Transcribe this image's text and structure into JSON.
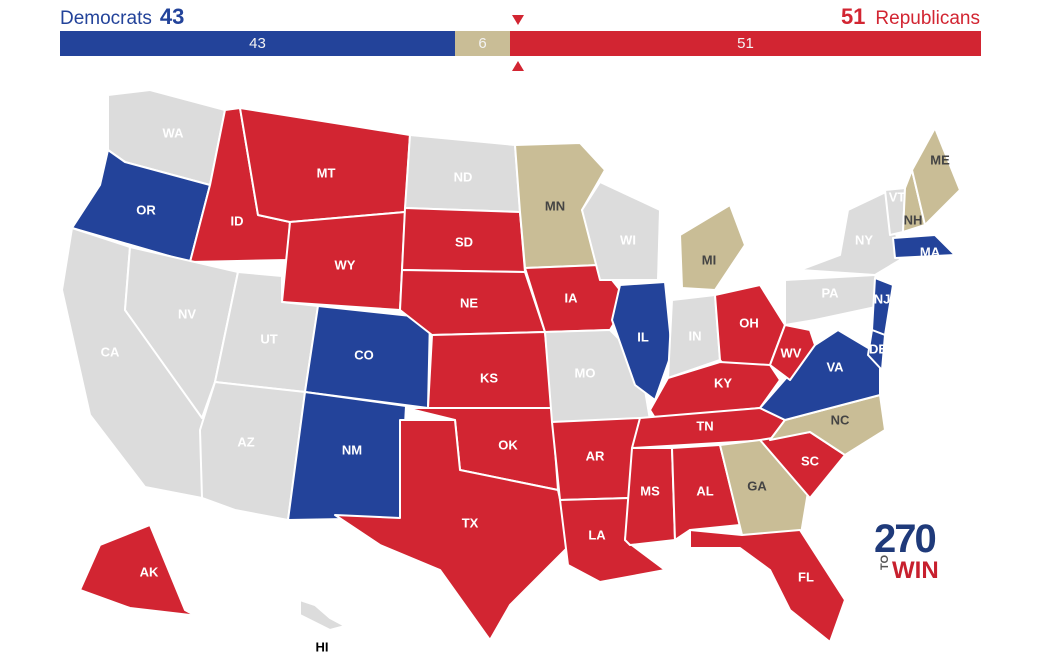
{
  "summary": {
    "dem_label": "Democrats",
    "dem_count": "43",
    "rep_label": "Republicans",
    "rep_count": "51",
    "bar": {
      "dem": "43",
      "tossup": "6",
      "rep": "51"
    }
  },
  "colors": {
    "democrat": "#23439a",
    "republican": "#d22532",
    "tossup": "#c9bd96",
    "no_race": "#dcdcdc"
  },
  "states": [
    {
      "abbr": "WA",
      "status": "none"
    },
    {
      "abbr": "OR",
      "status": "dem"
    },
    {
      "abbr": "CA",
      "status": "none"
    },
    {
      "abbr": "ID",
      "status": "rep"
    },
    {
      "abbr": "NV",
      "status": "none"
    },
    {
      "abbr": "MT",
      "status": "rep"
    },
    {
      "abbr": "WY",
      "status": "rep"
    },
    {
      "abbr": "UT",
      "status": "none"
    },
    {
      "abbr": "AZ",
      "status": "none"
    },
    {
      "abbr": "CO",
      "status": "dem"
    },
    {
      "abbr": "NM",
      "status": "dem"
    },
    {
      "abbr": "ND",
      "status": "none"
    },
    {
      "abbr": "SD",
      "status": "rep"
    },
    {
      "abbr": "NE",
      "status": "rep"
    },
    {
      "abbr": "KS",
      "status": "rep"
    },
    {
      "abbr": "OK",
      "status": "rep"
    },
    {
      "abbr": "TX",
      "status": "rep"
    },
    {
      "abbr": "MN",
      "status": "tossup"
    },
    {
      "abbr": "IA",
      "status": "rep"
    },
    {
      "abbr": "MO",
      "status": "none"
    },
    {
      "abbr": "AR",
      "status": "rep"
    },
    {
      "abbr": "LA",
      "status": "rep"
    },
    {
      "abbr": "WI",
      "status": "none"
    },
    {
      "abbr": "IL",
      "status": "dem"
    },
    {
      "abbr": "MI",
      "status": "tossup"
    },
    {
      "abbr": "IN",
      "status": "none"
    },
    {
      "abbr": "OH",
      "status": "rep"
    },
    {
      "abbr": "KY",
      "status": "rep"
    },
    {
      "abbr": "TN",
      "status": "rep"
    },
    {
      "abbr": "MS",
      "status": "rep"
    },
    {
      "abbr": "AL",
      "status": "rep"
    },
    {
      "abbr": "GA",
      "status": "tossup"
    },
    {
      "abbr": "FL",
      "status": "rep"
    },
    {
      "abbr": "SC",
      "status": "rep"
    },
    {
      "abbr": "NC",
      "status": "tossup"
    },
    {
      "abbr": "VA",
      "status": "dem"
    },
    {
      "abbr": "WV",
      "status": "rep"
    },
    {
      "abbr": "PA",
      "status": "none"
    },
    {
      "abbr": "NY",
      "status": "none"
    },
    {
      "abbr": "VT",
      "status": "none"
    },
    {
      "abbr": "NH",
      "status": "tossup"
    },
    {
      "abbr": "ME",
      "status": "tossup"
    },
    {
      "abbr": "MA",
      "status": "dem"
    },
    {
      "abbr": "NJ",
      "status": "dem"
    },
    {
      "abbr": "DE",
      "status": "dem"
    },
    {
      "abbr": "AK",
      "status": "rep"
    },
    {
      "abbr": "HI",
      "status": "none"
    }
  ],
  "logo": {
    "number": "270",
    "to": "TO",
    "win": "WIN"
  }
}
